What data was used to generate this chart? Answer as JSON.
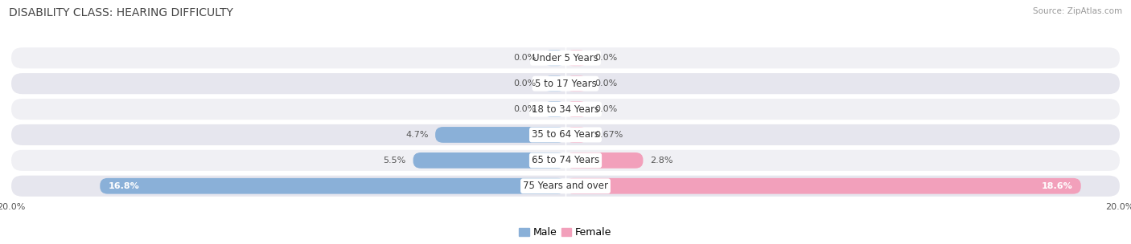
{
  "title": "DISABILITY CLASS: HEARING DIFFICULTY",
  "source": "Source: ZipAtlas.com",
  "categories": [
    "Under 5 Years",
    "5 to 17 Years",
    "18 to 34 Years",
    "35 to 64 Years",
    "65 to 74 Years",
    "75 Years and over"
  ],
  "male_values": [
    0.0,
    0.0,
    0.0,
    4.7,
    5.5,
    16.8
  ],
  "female_values": [
    0.0,
    0.0,
    0.0,
    0.67,
    2.8,
    18.6
  ],
  "male_labels": [
    "0.0%",
    "0.0%",
    "0.0%",
    "4.7%",
    "5.5%",
    "16.8%"
  ],
  "female_labels": [
    "0.0%",
    "0.0%",
    "0.0%",
    "0.67%",
    "2.8%",
    "18.6%"
  ],
  "xlim": 20.0,
  "male_color": "#8ab0d8",
  "female_color": "#f2a0bb",
  "row_bg_light": "#f0f0f4",
  "row_bg_dark": "#e6e6ee",
  "title_fontsize": 10,
  "label_fontsize": 8,
  "category_fontsize": 8.5,
  "axis_label_fontsize": 8,
  "legend_fontsize": 9,
  "min_bar_stub": 0.8
}
